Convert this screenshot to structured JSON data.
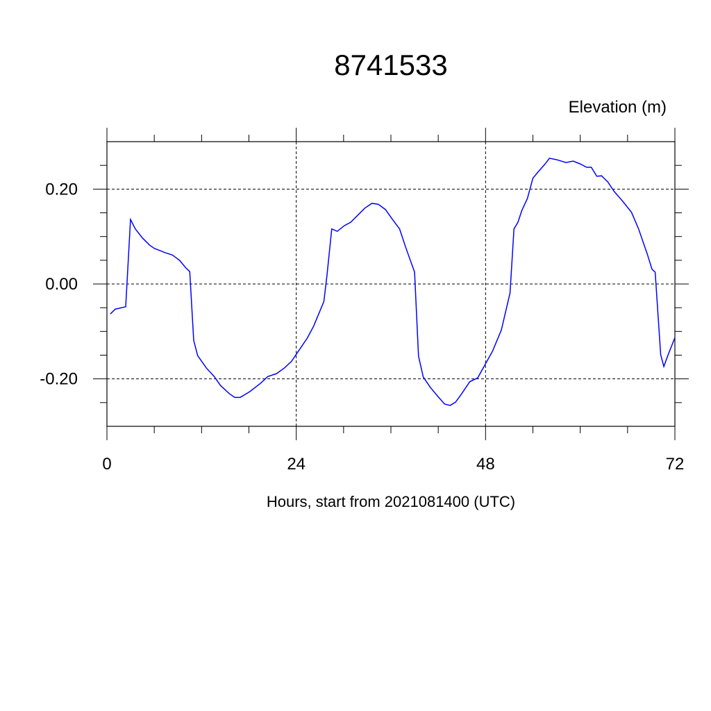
{
  "chart_data": {
    "type": "line",
    "title": "8741533",
    "ylabel": "Elevation (m)",
    "xlabel": "Hours, start from 2021081400 (UTC)",
    "xlim": [
      0,
      72
    ],
    "xticks": [
      0,
      24,
      48,
      72
    ],
    "xminorticks": [
      6,
      12,
      18,
      30,
      36,
      42,
      54,
      60,
      66
    ],
    "ylim": [
      -0.3,
      0.3
    ],
    "yticks": [
      {
        "value": -0.2,
        "label": "-0.20"
      },
      {
        "value": 0,
        "label": "0.00"
      },
      {
        "value": 0.2,
        "label": "0.20"
      }
    ],
    "yminorticks": [
      -0.25,
      -0.15,
      -0.1,
      -0.05,
      0.05,
      0.1,
      0.15,
      0.25
    ],
    "grid": true,
    "series": [
      {
        "name": "Elevation",
        "color": "#0000ff",
        "x": [
          0.44,
          1.06,
          2.38,
          2.99,
          3.6,
          4.5,
          5.4,
          6.0,
          7.4,
          8.3,
          9.2,
          10.0,
          10.5,
          11.0,
          11.5,
          12.6,
          13.6,
          14.4,
          15.5,
          16.2,
          16.9,
          18.1,
          19.5,
          20.4,
          21.5,
          22.5,
          23.4,
          24.5,
          25.4,
          26.2,
          27.5,
          27.9,
          28.5,
          29.2,
          30.1,
          30.9,
          31.8,
          32.7,
          33.6,
          34.4,
          35.3,
          36.2,
          37.1,
          37.9,
          39.0,
          39.5,
          40.1,
          41.0,
          41.9,
          42.8,
          43.5,
          44.2,
          44.9,
          46.0,
          47.0,
          47.9,
          48.9,
          50.0,
          51.1,
          51.6,
          52.1,
          52.6,
          53.3,
          54.0,
          54.7,
          55.5,
          56.1,
          57.0,
          58.2,
          59.1,
          60.0,
          60.8,
          61.4,
          62.1,
          62.7,
          63.5,
          64.3,
          65.4,
          66.5,
          67.4,
          68.5,
          69.1,
          69.5,
          70.2,
          70.6,
          71.1,
          72.0
        ],
        "values": [
          -0.063,
          -0.053,
          -0.048,
          0.136,
          0.116,
          0.097,
          0.082,
          0.075,
          0.066,
          0.061,
          0.05,
          0.034,
          0.026,
          -0.119,
          -0.151,
          -0.177,
          -0.195,
          -0.214,
          -0.231,
          -0.239,
          -0.239,
          -0.227,
          -0.209,
          -0.195,
          -0.189,
          -0.177,
          -0.163,
          -0.136,
          -0.114,
          -0.089,
          -0.037,
          0.019,
          0.116,
          0.111,
          0.123,
          0.13,
          0.145,
          0.16,
          0.17,
          0.168,
          0.157,
          0.136,
          0.116,
          0.076,
          0.025,
          -0.152,
          -0.196,
          -0.218,
          -0.236,
          -0.253,
          -0.256,
          -0.249,
          -0.233,
          -0.206,
          -0.198,
          -0.171,
          -0.141,
          -0.097,
          -0.019,
          0.116,
          0.13,
          0.155,
          0.18,
          0.223,
          0.237,
          0.252,
          0.265,
          0.262,
          0.256,
          0.259,
          0.253,
          0.246,
          0.246,
          0.227,
          0.228,
          0.215,
          0.195,
          0.174,
          0.151,
          0.116,
          0.063,
          0.031,
          0.025,
          -0.149,
          -0.174,
          -0.151,
          -0.113
        ]
      }
    ]
  }
}
